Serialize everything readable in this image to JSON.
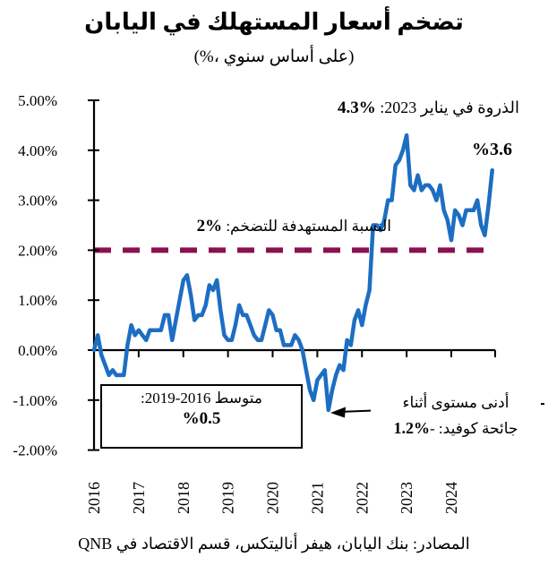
{
  "title": "تضخم أسعار المستهلك في اليابان",
  "subtitle": "(%، على أساس سنوي)",
  "source": "المصادر: بنك اليابان، هيفر أناليتكس، قسم الاقتصاد في QNB",
  "annotations": {
    "peak_text": "الذروة في يناير 2023: ",
    "peak_value": "%4.3",
    "endpoint_value": "%3.6",
    "target_text": "النسبة المستهدفة للتضخم: ",
    "target_value": "%2",
    "avg_line1": "متوسط 2016‏-2019:",
    "avg_value": "%0.5",
    "covid_line1": "أدنى مستوى أثناء",
    "covid_line2": "جائحة كوفيد: -",
    "covid_value": "%1.2"
  },
  "colors": {
    "line": "#1d6ec2",
    "target": "#8a1150",
    "axis": "#000000"
  },
  "chart_data": {
    "type": "line",
    "title": "تضخم أسعار المستهلك في اليابان (%، على أساس سنوي)",
    "frequency": "monthly",
    "x_start": "2016-01",
    "x_end": "2024-12",
    "x_years": [
      2016,
      2017,
      2018,
      2019,
      2020,
      2021,
      2022,
      2023,
      2024
    ],
    "ytick_labels": [
      "5.00%",
      "4.00%",
      "3.00%",
      "2.00%",
      "1.00%",
      "0.00%",
      "-1.00%",
      "-2.00%"
    ],
    "ylim": [
      -2,
      5
    ],
    "grid": false,
    "legend": "none",
    "target_line": 2.0,
    "series": [
      {
        "name": "تضخم أسعار المستهلك (٪ سنوي)",
        "values": [
          0.0,
          0.3,
          -0.1,
          -0.3,
          -0.5,
          -0.4,
          -0.5,
          -0.5,
          -0.5,
          0.1,
          0.5,
          0.3,
          0.4,
          0.3,
          0.2,
          0.4,
          0.4,
          0.4,
          0.4,
          0.7,
          0.7,
          0.2,
          0.6,
          1.0,
          1.4,
          1.5,
          1.1,
          0.6,
          0.7,
          0.7,
          0.9,
          1.3,
          1.2,
          1.4,
          0.8,
          0.3,
          0.2,
          0.2,
          0.5,
          0.9,
          0.7,
          0.7,
          0.5,
          0.3,
          0.2,
          0.2,
          0.5,
          0.8,
          0.7,
          0.4,
          0.4,
          0.1,
          0.1,
          0.1,
          0.3,
          0.2,
          0.0,
          -0.4,
          -0.8,
          -1.0,
          -0.6,
          -0.5,
          -0.4,
          -1.2,
          -0.8,
          -0.5,
          -0.3,
          -0.4,
          0.2,
          0.1,
          0.6,
          0.8,
          0.5,
          0.9,
          1.2,
          2.5,
          2.5,
          2.4,
          2.6,
          3.0,
          3.0,
          3.7,
          3.8,
          4.0,
          4.3,
          3.3,
          3.2,
          3.5,
          3.2,
          3.3,
          3.3,
          3.2,
          3.0,
          3.3,
          2.8,
          2.6,
          2.2,
          2.8,
          2.7,
          2.5,
          2.8,
          2.8,
          2.8,
          3.0,
          2.5,
          2.3,
          2.9,
          3.6
        ]
      }
    ],
    "key_points": {
      "peak": {
        "date": "يناير 2023",
        "value": 4.3
      },
      "latest": {
        "value": 3.6
      },
      "covid_low": {
        "value": -1.2
      },
      "average_2016_2019": 0.5,
      "inflation_target": 2.0
    }
  }
}
